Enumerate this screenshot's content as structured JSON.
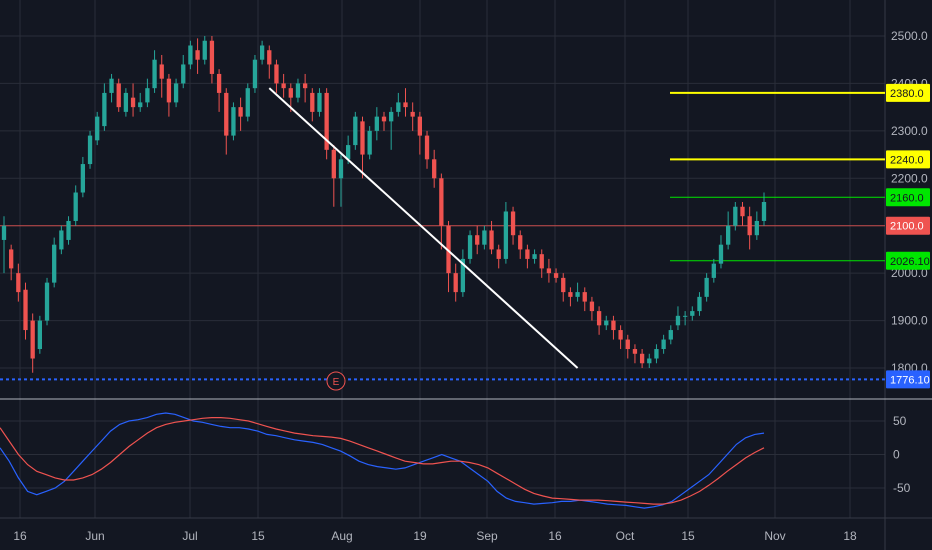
{
  "chart_data": [
    {
      "type": "candlestick",
      "title": "",
      "y_ticks": [
        "2500.0",
        "2400.0",
        "2300.0",
        "2200.0",
        "2100.0",
        "2000.0",
        "1900.0",
        "1800.0"
      ],
      "ylim": [
        1776.1,
        2500
      ],
      "x_ticks": [
        "16",
        "Jun",
        "Jul",
        "15",
        "Aug",
        "19",
        "Sep",
        "16",
        "Oct",
        "15",
        "Nov",
        "18"
      ],
      "grid": true,
      "colors": {
        "up": "#26a69a",
        "down": "#ef5350",
        "background": "#131722",
        "grid": "#2a2e39",
        "trendline": "#ffffff",
        "yellow_level": "#ffff00",
        "green_level": "#00e600",
        "red_level": "#ef5350",
        "support": "#2962ff"
      },
      "candles": [
        [
          2070,
          2100,
          2000,
          2120
        ],
        [
          2050,
          2010,
          1985,
          2060
        ],
        [
          2000,
          1960,
          1940,
          2020
        ],
        [
          1965,
          1880,
          1860,
          1980
        ],
        [
          1900,
          1820,
          1790,
          1915
        ],
        [
          1840,
          1900,
          1830,
          1910
        ],
        [
          1900,
          1980,
          1890,
          1990
        ],
        [
          1980,
          2060,
          1970,
          2075
        ],
        [
          2050,
          2090,
          2040,
          2100
        ],
        [
          2070,
          2110,
          2060,
          2120
        ],
        [
          2110,
          2170,
          2100,
          2185
        ],
        [
          2170,
          2230,
          2160,
          2245
        ],
        [
          2230,
          2290,
          2220,
          2300
        ],
        [
          2280,
          2330,
          2270,
          2340
        ],
        [
          2310,
          2380,
          2300,
          2400
        ],
        [
          2380,
          2410,
          2360,
          2420
        ],
        [
          2400,
          2350,
          2340,
          2410
        ],
        [
          2340,
          2380,
          2330,
          2390
        ],
        [
          2370,
          2350,
          2330,
          2400
        ],
        [
          2350,
          2360,
          2340,
          2380
        ],
        [
          2360,
          2390,
          2350,
          2410
        ],
        [
          2390,
          2450,
          2380,
          2470
        ],
        [
          2440,
          2410,
          2370,
          2460
        ],
        [
          2410,
          2360,
          2330,
          2420
        ],
        [
          2360,
          2400,
          2350,
          2410
        ],
        [
          2400,
          2440,
          2390,
          2460
        ],
        [
          2440,
          2480,
          2430,
          2490
        ],
        [
          2470,
          2450,
          2420,
          2495
        ],
        [
          2450,
          2490,
          2440,
          2500
        ],
        [
          2490,
          2420,
          2400,
          2500
        ],
        [
          2420,
          2380,
          2340,
          2430
        ],
        [
          2380,
          2290,
          2250,
          2390
        ],
        [
          2290,
          2350,
          2280,
          2360
        ],
        [
          2350,
          2330,
          2300,
          2370
        ],
        [
          2330,
          2390,
          2320,
          2400
        ],
        [
          2390,
          2450,
          2380,
          2460
        ],
        [
          2450,
          2480,
          2440,
          2490
        ],
        [
          2470,
          2440,
          2410,
          2480
        ],
        [
          2440,
          2400,
          2380,
          2450
        ],
        [
          2400,
          2390,
          2370,
          2420
        ],
        [
          2390,
          2370,
          2340,
          2400
        ],
        [
          2370,
          2400,
          2360,
          2410
        ],
        [
          2400,
          2390,
          2360,
          2420
        ],
        [
          2380,
          2340,
          2320,
          2390
        ],
        [
          2340,
          2380,
          2330,
          2390
        ],
        [
          2380,
          2260,
          2240,
          2390
        ],
        [
          2260,
          2200,
          2140,
          2270
        ],
        [
          2200,
          2240,
          2140,
          2250
        ],
        [
          2240,
          2270,
          2230,
          2290
        ],
        [
          2270,
          2330,
          2260,
          2340
        ],
        [
          2320,
          2250,
          2200,
          2330
        ],
        [
          2250,
          2300,
          2240,
          2310
        ],
        [
          2300,
          2330,
          2280,
          2350
        ],
        [
          2330,
          2320,
          2300,
          2340
        ],
        [
          2320,
          2340,
          2260,
          2350
        ],
        [
          2340,
          2360,
          2330,
          2380
        ],
        [
          2360,
          2350,
          2330,
          2390
        ],
        [
          2340,
          2330,
          2300,
          2360
        ],
        [
          2330,
          2290,
          2250,
          2340
        ],
        [
          2290,
          2240,
          2220,
          2300
        ],
        [
          2240,
          2200,
          2180,
          2260
        ],
        [
          2200,
          2100,
          2050,
          2210
        ],
        [
          2100,
          2000,
          1960,
          2110
        ],
        [
          2000,
          1960,
          1940,
          2020
        ],
        [
          1960,
          2030,
          1950,
          2050
        ],
        [
          2030,
          2080,
          2020,
          2090
        ],
        [
          2080,
          2060,
          2040,
          2100
        ],
        [
          2060,
          2090,
          2050,
          2100
        ],
        [
          2090,
          2050,
          2040,
          2110
        ],
        [
          2050,
          2030,
          2010,
          2060
        ],
        [
          2030,
          2130,
          2020,
          2150
        ],
        [
          2130,
          2080,
          2060,
          2140
        ],
        [
          2080,
          2050,
          2030,
          2090
        ],
        [
          2050,
          2030,
          2010,
          2060
        ],
        [
          2030,
          2040,
          2020,
          2050
        ],
        [
          2040,
          2010,
          1990,
          2050
        ],
        [
          2010,
          2000,
          1980,
          2030
        ],
        [
          2000,
          1990,
          1980,
          2010
        ],
        [
          1990,
          1960,
          1940,
          2000
        ],
        [
          1960,
          1950,
          1930,
          1970
        ],
        [
          1950,
          1960,
          1940,
          1980
        ],
        [
          1960,
          1940,
          1920,
          1970
        ],
        [
          1940,
          1920,
          1900,
          1950
        ],
        [
          1920,
          1890,
          1870,
          1930
        ],
        [
          1890,
          1900,
          1880,
          1910
        ],
        [
          1900,
          1880,
          1860,
          1910
        ],
        [
          1880,
          1860,
          1840,
          1890
        ],
        [
          1860,
          1840,
          1820,
          1870
        ],
        [
          1840,
          1830,
          1810,
          1850
        ],
        [
          1830,
          1810,
          1800,
          1840
        ],
        [
          1810,
          1820,
          1800,
          1830
        ],
        [
          1820,
          1840,
          1810,
          1850
        ],
        [
          1840,
          1860,
          1830,
          1870
        ],
        [
          1860,
          1880,
          1850,
          1890
        ],
        [
          1890,
          1910,
          1880,
          1930
        ],
        [
          1910,
          1910,
          1890,
          1920
        ],
        [
          1910,
          1920,
          1900,
          1930
        ],
        [
          1920,
          1950,
          1910,
          1960
        ],
        [
          1950,
          1990,
          1940,
          2000
        ],
        [
          1990,
          2020,
          1980,
          2030
        ],
        [
          2020,
          2060,
          2010,
          2080
        ],
        [
          2060,
          2100,
          2050,
          2130
        ],
        [
          2100,
          2140,
          2090,
          2150
        ],
        [
          2140,
          2120,
          2100,
          2150
        ],
        [
          2120,
          2080,
          2050,
          2140
        ],
        [
          2080,
          2110,
          2070,
          2130
        ],
        [
          2110,
          2150,
          2100,
          2170
        ]
      ],
      "oscillator": {
        "y_ticks": [
          "50",
          "0",
          "-50"
        ],
        "ylim": [
          -90,
          70
        ],
        "series": [
          {
            "color": "#2962ff",
            "values": [
              10,
              -10,
              -35,
              -55,
              -60,
              -55,
              -50,
              -40,
              -25,
              -10,
              5,
              20,
              35,
              45,
              50,
              52,
              55,
              60,
              62,
              60,
              55,
              50,
              48,
              45,
              42,
              40,
              40,
              38,
              35,
              30,
              28,
              25,
              22,
              20,
              18,
              15,
              10,
              5,
              -2,
              -10,
              -15,
              -18,
              -20,
              -22,
              -20,
              -15,
              -10,
              -5,
              0,
              -5,
              -10,
              -20,
              -30,
              -40,
              -55,
              -65,
              -70,
              -72,
              -74,
              -73,
              -72,
              -70,
              -70,
              -68,
              -70,
              -72,
              -74,
              -75,
              -76,
              -78,
              -80,
              -78,
              -75,
              -70,
              -60,
              -50,
              -40,
              -30,
              -15,
              0,
              15,
              25,
              30,
              32
            ]
          },
          {
            "color": "#ef5350",
            "values": [
              40,
              20,
              0,
              -15,
              -25,
              -30,
              -35,
              -38,
              -38,
              -35,
              -30,
              -22,
              -12,
              0,
              12,
              22,
              32,
              40,
              45,
              48,
              50,
              52,
              54,
              55,
              55,
              54,
              52,
              50,
              46,
              42,
              38,
              35,
              32,
              30,
              28,
              27,
              26,
              24,
              20,
              15,
              10,
              5,
              0,
              -5,
              -10,
              -12,
              -14,
              -14,
              -12,
              -10,
              -10,
              -12,
              -15,
              -20,
              -28,
              -36,
              -44,
              -52,
              -58,
              -62,
              -65,
              -66,
              -67,
              -68,
              -68,
              -68,
              -69,
              -70,
              -71,
              -72,
              -73,
              -74,
              -74,
              -72,
              -68,
              -62,
              -55,
              -46,
              -36,
              -25,
              -15,
              -5,
              3,
              10
            ]
          }
        ]
      }
    }
  ],
  "levels": {
    "yellow_2380": {
      "value": 2380,
      "label": "2380.0"
    },
    "yellow_2240": {
      "value": 2240,
      "label": "2240.0"
    },
    "green_2160": {
      "value": 2160,
      "label": "2160.0"
    },
    "red_2100": {
      "value": 2100,
      "label": "2100.0"
    },
    "green_2026": {
      "value": 2026.1,
      "label": "2026.10"
    },
    "support_1776": {
      "value": 1776.1,
      "label": "1776.10"
    }
  },
  "earnings_marker": {
    "label": "E"
  },
  "trendline": {
    "from": [
      37,
      2390
    ],
    "to": [
      80,
      1800
    ]
  }
}
